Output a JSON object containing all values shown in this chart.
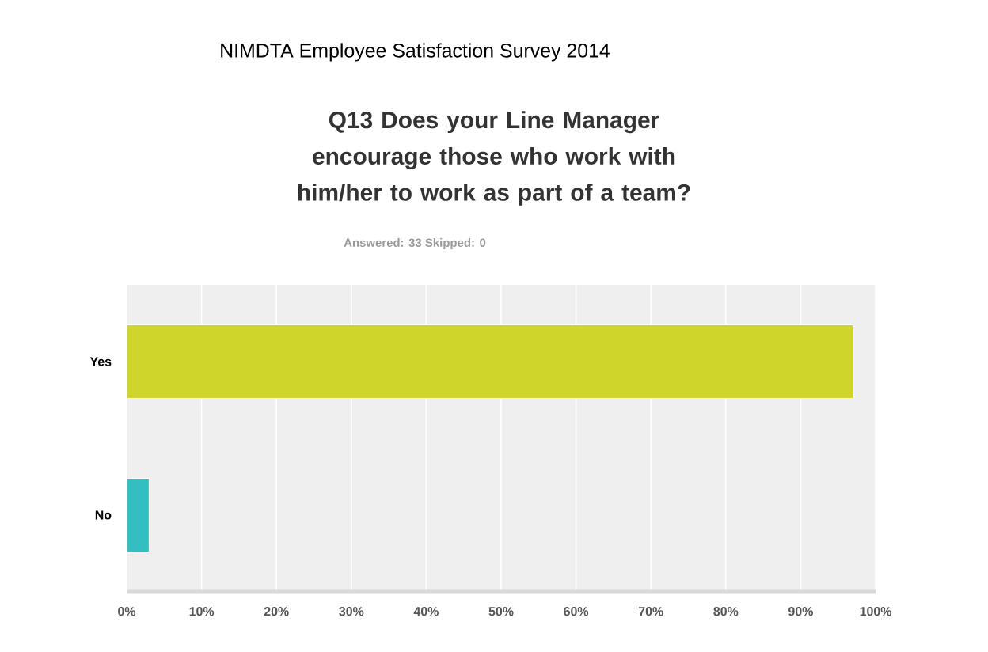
{
  "chart_data": {
    "type": "bar",
    "orientation": "horizontal",
    "title": "NIMDTA Employee Satisfaction Survey 2014",
    "subtitle": "Q13 Does your Line Manager encourage those who work with him/her to work as part of a team?",
    "annotations": [
      "Answered: 33    Skipped: 0"
    ],
    "categories": [
      "Yes",
      "No"
    ],
    "values": [
      97,
      3
    ],
    "colors": [
      "#cfd52a",
      "#33bfc1"
    ],
    "xlim": [
      0,
      100
    ],
    "xticks": [
      {
        "value": 0,
        "label": "0%"
      },
      {
        "value": 10,
        "label": "10%"
      },
      {
        "value": 20,
        "label": "20%"
      },
      {
        "value": 30,
        "label": "30%"
      },
      {
        "value": 40,
        "label": "40%"
      },
      {
        "value": 50,
        "label": "50%"
      },
      {
        "value": 60,
        "label": "60%"
      },
      {
        "value": 70,
        "label": "70%"
      },
      {
        "value": 80,
        "label": "80%"
      },
      {
        "value": 90,
        "label": "90%"
      },
      {
        "value": 100,
        "label": "100%"
      }
    ],
    "grid": "x"
  }
}
